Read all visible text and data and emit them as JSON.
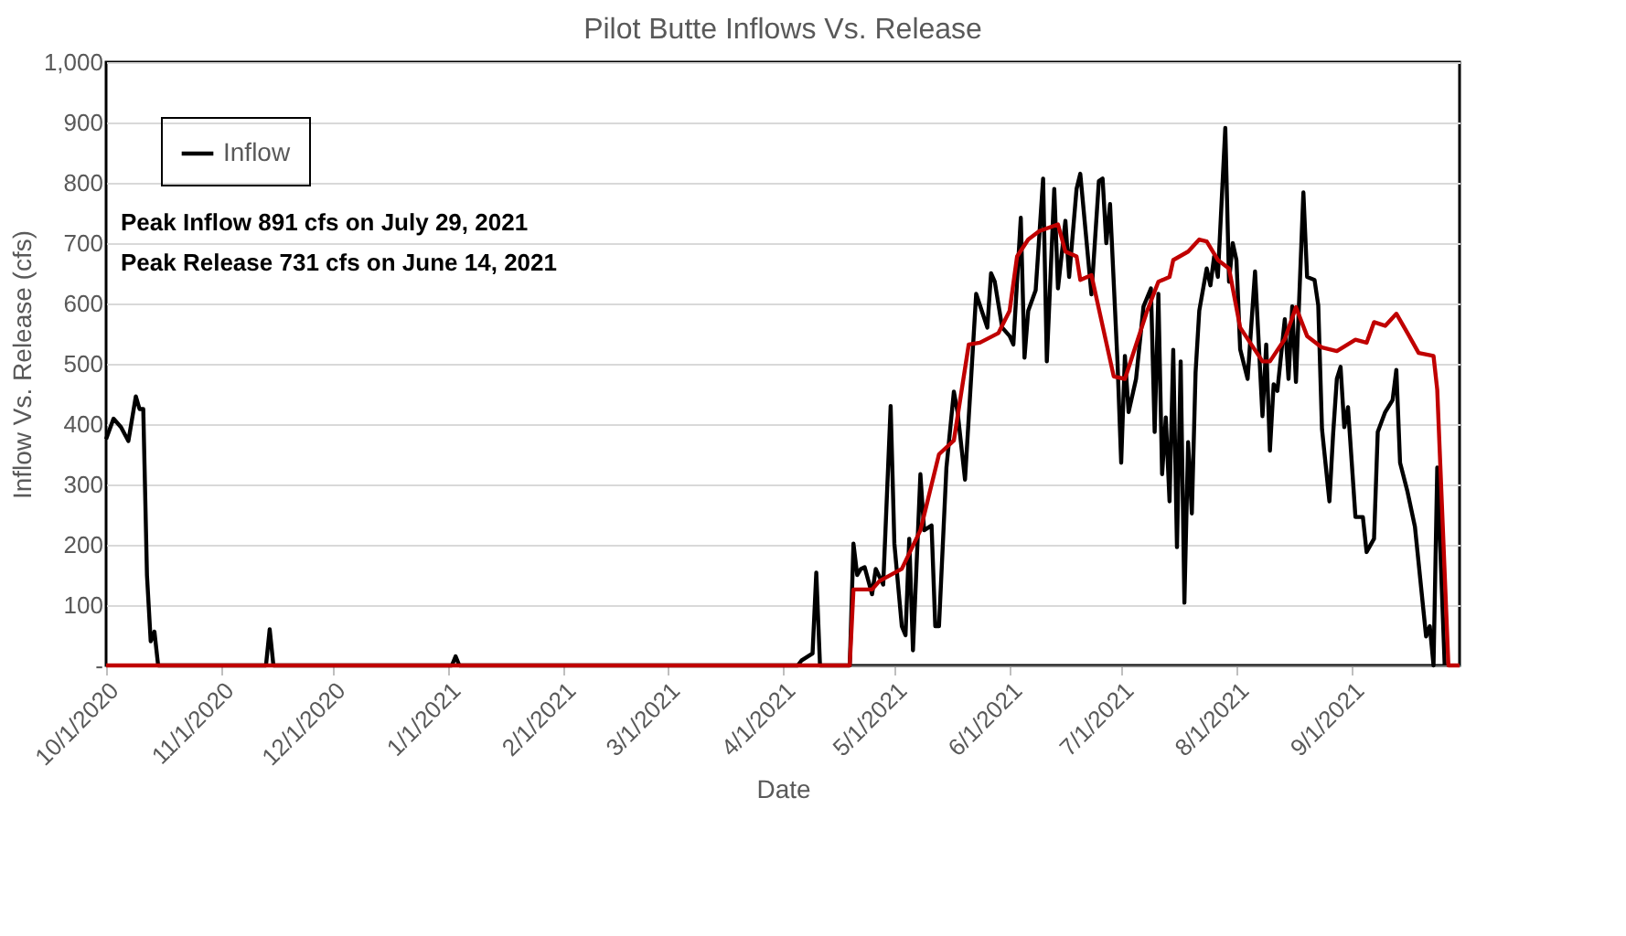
{
  "chart_data": {
    "type": "line",
    "title": "Pilot Butte Inflows Vs. Release",
    "xlabel": "Date",
    "ylabel": "Inflow Vs. Release (cfs)",
    "annotations": [
      "Peak Inflow 891 cfs on July 29, 2021",
      "Peak Release 731 cfs on June 14, 2021"
    ],
    "xlim": [
      "2020-10-01",
      "2021-09-30"
    ],
    "xticks": [
      {
        "value": "2020-10-01",
        "label": "10/1/2020"
      },
      {
        "value": "2020-11-01",
        "label": "11/1/2020"
      },
      {
        "value": "2020-12-01",
        "label": "12/1/2020"
      },
      {
        "value": "2021-01-01",
        "label": "1/1/2021"
      },
      {
        "value": "2021-02-01",
        "label": "2/1/2021"
      },
      {
        "value": "2021-03-01",
        "label": "3/1/2021"
      },
      {
        "value": "2021-04-01",
        "label": "4/1/2021"
      },
      {
        "value": "2021-05-01",
        "label": "5/1/2021"
      },
      {
        "value": "2021-06-01",
        "label": "6/1/2021"
      },
      {
        "value": "2021-07-01",
        "label": "7/1/2021"
      },
      {
        "value": "2021-08-01",
        "label": "8/1/2021"
      },
      {
        "value": "2021-09-01",
        "label": "9/1/2021"
      }
    ],
    "ylim": [
      0,
      1000
    ],
    "yticks": [
      {
        "value": 0,
        "label": "-"
      },
      100,
      200,
      300,
      400,
      500,
      600,
      700,
      800,
      900,
      {
        "value": 1000,
        "label": "1,000"
      }
    ],
    "grid": "y",
    "legend": "top left",
    "marker": "none",
    "line_style": "solid",
    "series": [
      {
        "name": "Inflow",
        "color": "#000000",
        "x": [
          "2020-10-01",
          "2020-10-03",
          "2020-10-05",
          "2020-10-07",
          "2020-10-09",
          "2020-10-10",
          "2020-10-11",
          "2020-10-12",
          "2020-10-13",
          "2020-10-14",
          "2020-10-15",
          "2020-11-13",
          "2020-11-14",
          "2020-11-15",
          "2021-01-02",
          "2021-01-03",
          "2021-01-04",
          "2021-04-05",
          "2021-04-06",
          "2021-04-09",
          "2021-04-10",
          "2021-04-11",
          "2021-04-19",
          "2021-04-20",
          "2021-04-21",
          "2021-04-22",
          "2021-04-23",
          "2021-04-25",
          "2021-04-26",
          "2021-04-28",
          "2021-04-30",
          "2021-05-01",
          "2021-05-03",
          "2021-05-04",
          "2021-05-05",
          "2021-05-06",
          "2021-05-08",
          "2021-05-09",
          "2021-05-11",
          "2021-05-12",
          "2021-05-13",
          "2021-05-15",
          "2021-05-17",
          "2021-05-18",
          "2021-05-20",
          "2021-05-23",
          "2021-05-26",
          "2021-05-27",
          "2021-05-28",
          "2021-05-30",
          "2021-06-01",
          "2021-06-02",
          "2021-06-04",
          "2021-06-05",
          "2021-06-06",
          "2021-06-08",
          "2021-06-10",
          "2021-06-11",
          "2021-06-13",
          "2021-06-14",
          "2021-06-16",
          "2021-06-17",
          "2021-06-19",
          "2021-06-20",
          "2021-06-23",
          "2021-06-25",
          "2021-06-26",
          "2021-06-27",
          "2021-06-28",
          "2021-06-30",
          "2021-07-01",
          "2021-07-02",
          "2021-07-03",
          "2021-07-05",
          "2021-07-07",
          "2021-07-09",
          "2021-07-10",
          "2021-07-11",
          "2021-07-12",
          "2021-07-13",
          "2021-07-14",
          "2021-07-15",
          "2021-07-16",
          "2021-07-17",
          "2021-07-18",
          "2021-07-19",
          "2021-07-20",
          "2021-07-21",
          "2021-07-22",
          "2021-07-24",
          "2021-07-25",
          "2021-07-26",
          "2021-07-27",
          "2021-07-29",
          "2021-07-30",
          "2021-07-31",
          "2021-08-01",
          "2021-08-02",
          "2021-08-04",
          "2021-08-06",
          "2021-08-08",
          "2021-08-09",
          "2021-08-10",
          "2021-08-11",
          "2021-08-12",
          "2021-08-14",
          "2021-08-15",
          "2021-08-16",
          "2021-08-17",
          "2021-08-19",
          "2021-08-20",
          "2021-08-22",
          "2021-08-23",
          "2021-08-24",
          "2021-08-26",
          "2021-08-27",
          "2021-08-28",
          "2021-08-29",
          "2021-08-30",
          "2021-08-31",
          "2021-09-02",
          "2021-09-04",
          "2021-09-05",
          "2021-09-07",
          "2021-09-08",
          "2021-09-10",
          "2021-09-12",
          "2021-09-13",
          "2021-09-14",
          "2021-09-16",
          "2021-09-18",
          "2021-09-21",
          "2021-09-22",
          "2021-09-23",
          "2021-09-24",
          "2021-09-26"
        ],
        "values": [
          375,
          409,
          395,
          372,
          446,
          425,
          425,
          149,
          40,
          56,
          0,
          0,
          60,
          0,
          0,
          15,
          0,
          0,
          8,
          20,
          154,
          0,
          0,
          202,
          150,
          160,
          163,
          118,
          160,
          134,
          430,
          202,
          65,
          50,
          210,
          25,
          317,
          224,
          232,
          65,
          65,
          328,
          454,
          420,
          308,
          616,
          560,
          650,
          636,
          560,
          546,
          532,
          742,
          510,
          588,
          622,
          807,
          504,
          790,
          625,
          737,
          644,
          790,
          815,
          615,
          803,
          807,
          700,
          765,
          504,
          336,
          513,
          420,
          475,
          595,
          625,
          387,
          616,
          317,
          411,
          272,
          523,
          196,
          504,
          104,
          370,
          252,
          485,
          588,
          658,
          630,
          678,
          644,
          891,
          636,
          700,
          672,
          524,
          475,
          653,
          413,
          532,
          356,
          466,
          455,
          574,
          475,
          595,
          470,
          784,
          644,
          639,
          597,
          392,
          272,
          384,
          475,
          495,
          395,
          428,
          246,
          246,
          188,
          210,
          387,
          420,
          440,
          490,
          336,
          288,
          230,
          48,
          65,
          0,
          328,
          0
        ]
      },
      {
        "color": "#c00000",
        "x": [
          "2020-10-01",
          "2021-04-19",
          "2021-04-20",
          "2021-04-25",
          "2021-04-27",
          "2021-05-03",
          "2021-05-08",
          "2021-05-13",
          "2021-05-17",
          "2021-05-21",
          "2021-05-24",
          "2021-05-29",
          "2021-06-01",
          "2021-06-03",
          "2021-06-06",
          "2021-06-09",
          "2021-06-14",
          "2021-06-16",
          "2021-06-19",
          "2021-06-20",
          "2021-06-23",
          "2021-06-29",
          "2021-07-02",
          "2021-07-08",
          "2021-07-11",
          "2021-07-14",
          "2021-07-15",
          "2021-07-19",
          "2021-07-22",
          "2021-07-24",
          "2021-07-27",
          "2021-07-30",
          "2021-08-02",
          "2021-08-08",
          "2021-08-10",
          "2021-08-14",
          "2021-08-17",
          "2021-08-20",
          "2021-08-24",
          "2021-08-28",
          "2021-09-02",
          "2021-09-05",
          "2021-09-07",
          "2021-09-10",
          "2021-09-13",
          "2021-09-16",
          "2021-09-19",
          "2021-09-23",
          "2021-09-24",
          "2021-09-27",
          "2021-09-30"
        ],
        "values": [
          0,
          0,
          126,
          126,
          140,
          160,
          224,
          350,
          373,
          532,
          535,
          551,
          588,
          678,
          706,
          720,
          731,
          686,
          678,
          639,
          647,
          479,
          475,
          588,
          636,
          644,
          672,
          686,
          706,
          703,
          672,
          658,
          560,
          504,
          504,
          541,
          594,
          546,
          527,
          521,
          540,
          535,
          569,
          563,
          583,
          551,
          518,
          513,
          457,
          0,
          0
        ]
      }
    ]
  }
}
